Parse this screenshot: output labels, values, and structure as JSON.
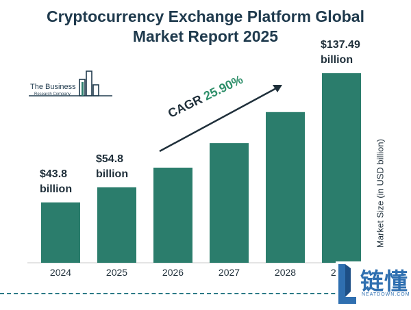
{
  "title": "Cryptocurrency Exchange Platform Global Market Report 2025",
  "logo": {
    "line1": "The Business",
    "line2": "Research Company"
  },
  "cagr": {
    "label": "CAGR",
    "value": "25.90%"
  },
  "watermark": {
    "main": "链懂",
    "sub": "NEATDOWN.COM"
  },
  "colors": {
    "bar": "#2b7d6c",
    "title": "#1f3a4d",
    "cagr_value": "#2f8f6a",
    "dash": "#2b7a86"
  },
  "chart_data": {
    "type": "bar",
    "title": "Cryptocurrency Exchange Platform Global Market Report 2025",
    "categories": [
      "2024",
      "2025",
      "2026",
      "2027",
      "2028",
      "2029"
    ],
    "values": [
      43.8,
      54.8,
      69.0,
      86.8,
      109.3,
      137.49
    ],
    "data_labels": [
      "$43.8\nbillion",
      "$54.8\nbillion",
      "",
      "",
      "",
      "$137.49\nbillion"
    ],
    "xlabel": "",
    "ylabel": "Market Size (in USD billion)",
    "ylim": [
      0,
      137.49
    ],
    "grid": false,
    "legend": "none"
  }
}
